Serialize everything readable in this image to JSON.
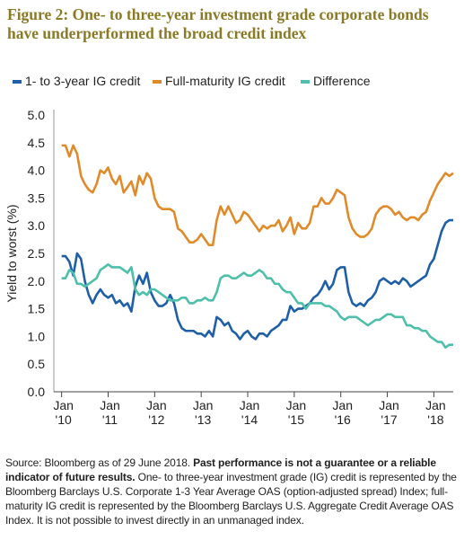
{
  "chart_data": {
    "type": "line",
    "title": "Figure 2: One- to three-year investment grade corporate bonds have underperformed the broad credit index",
    "y_label": "Yield to worst (%)",
    "legend": "top",
    "grid": false,
    "xlim": [
      "2009-11",
      "2018-06"
    ],
    "xticks": [
      {
        "value": "2010-01",
        "label": "Jan '10"
      },
      {
        "value": "2011-01",
        "label": "Jan '11"
      },
      {
        "value": "2012-01",
        "label": "Jan '12"
      },
      {
        "value": "2013-01",
        "label": "Jan '13"
      },
      {
        "value": "2014-01",
        "label": "Jan '14"
      },
      {
        "value": "2015-01",
        "label": "Jan '15"
      },
      {
        "value": "2016-01",
        "label": "Jan '16"
      },
      {
        "value": "2017-01",
        "label": "Jan '17"
      },
      {
        "value": "2018-01",
        "label": "Jan '18"
      }
    ],
    "ylim": [
      0,
      5
    ],
    "yticks": [
      {
        "value": 0,
        "label": "0.0"
      },
      {
        "value": 0.5,
        "label": "0.5"
      },
      {
        "value": 1,
        "label": "1.0"
      },
      {
        "value": 1.5,
        "label": "1.5"
      },
      {
        "value": 2,
        "label": "2.0"
      },
      {
        "value": 2.5,
        "label": "2.5"
      },
      {
        "value": 3,
        "label": "3.0"
      },
      {
        "value": 3.5,
        "label": "3.5"
      },
      {
        "value": 4,
        "label": "4.0"
      },
      {
        "value": 4.5,
        "label": "4.5"
      },
      {
        "value": 5,
        "label": "5.0"
      }
    ],
    "x": [
      "2010-01",
      "2010-02",
      "2010-03",
      "2010-04",
      "2010-05",
      "2010-06",
      "2010-07",
      "2010-08",
      "2010-09",
      "2010-10",
      "2010-11",
      "2010-12",
      "2011-01",
      "2011-02",
      "2011-03",
      "2011-04",
      "2011-05",
      "2011-06",
      "2011-07",
      "2011-08",
      "2011-09",
      "2011-10",
      "2011-11",
      "2011-12",
      "2012-01",
      "2012-02",
      "2012-03",
      "2012-04",
      "2012-05",
      "2012-06",
      "2012-07",
      "2012-08",
      "2012-09",
      "2012-10",
      "2012-11",
      "2012-12",
      "2013-01",
      "2013-02",
      "2013-03",
      "2013-04",
      "2013-05",
      "2013-06",
      "2013-07",
      "2013-08",
      "2013-09",
      "2013-10",
      "2013-11",
      "2013-12",
      "2014-01",
      "2014-02",
      "2014-03",
      "2014-04",
      "2014-05",
      "2014-06",
      "2014-07",
      "2014-08",
      "2014-09",
      "2014-10",
      "2014-11",
      "2014-12",
      "2015-01",
      "2015-02",
      "2015-03",
      "2015-04",
      "2015-05",
      "2015-06",
      "2015-07",
      "2015-08",
      "2015-09",
      "2015-10",
      "2015-11",
      "2015-12",
      "2016-01",
      "2016-02",
      "2016-03",
      "2016-04",
      "2016-05",
      "2016-06",
      "2016-07",
      "2016-08",
      "2016-09",
      "2016-10",
      "2016-11",
      "2016-12",
      "2017-01",
      "2017-02",
      "2017-03",
      "2017-04",
      "2017-05",
      "2017-06",
      "2017-07",
      "2017-08",
      "2017-09",
      "2017-10",
      "2017-11",
      "2017-12",
      "2018-01",
      "2018-02",
      "2018-03",
      "2018-04",
      "2018-05",
      "2018-06"
    ],
    "series": [
      {
        "name": "1- to 3-year IG credit",
        "color": "#1f5fa8",
        "values": [
          2.45,
          2.45,
          2.35,
          2.1,
          2.5,
          2.4,
          2.0,
          1.75,
          1.6,
          1.75,
          1.85,
          1.75,
          1.7,
          1.75,
          1.6,
          1.65,
          1.55,
          1.6,
          1.45,
          1.9,
          2.1,
          1.95,
          2.15,
          1.8,
          1.65,
          1.55,
          1.55,
          1.6,
          1.75,
          1.6,
          1.3,
          1.15,
          1.1,
          1.1,
          1.1,
          1.05,
          1.05,
          1.0,
          1.1,
          1.0,
          1.35,
          1.3,
          1.2,
          1.25,
          1.1,
          1.05,
          0.95,
          1.05,
          1.1,
          1.0,
          0.95,
          1.05,
          1.05,
          1.0,
          1.1,
          1.15,
          1.2,
          1.3,
          1.3,
          1.55,
          1.45,
          1.5,
          1.5,
          1.55,
          1.6,
          1.7,
          1.75,
          1.85,
          2.0,
          1.85,
          1.95,
          2.2,
          2.25,
          2.25,
          1.8,
          1.6,
          1.55,
          1.6,
          1.55,
          1.65,
          1.7,
          1.8,
          2.0,
          2.05,
          2.0,
          1.95,
          2.0,
          1.95,
          2.05,
          2.0,
          1.9,
          1.95,
          2.0,
          2.05,
          2.1,
          2.3,
          2.4,
          2.65,
          2.9,
          3.05,
          3.1,
          3.1
        ]
      },
      {
        "name": "Full-maturity IG credit",
        "color": "#e08a2a",
        "values": [
          4.45,
          4.45,
          4.25,
          4.45,
          4.3,
          3.9,
          3.75,
          3.65,
          3.6,
          3.75,
          4.0,
          3.95,
          4.05,
          3.85,
          3.75,
          3.9,
          3.6,
          3.7,
          3.8,
          3.55,
          3.9,
          3.75,
          3.95,
          3.85,
          3.5,
          3.35,
          3.3,
          3.3,
          3.3,
          3.25,
          2.95,
          2.9,
          2.8,
          2.7,
          2.7,
          2.75,
          2.85,
          2.75,
          2.65,
          2.65,
          3.1,
          3.35,
          3.2,
          3.35,
          3.2,
          3.05,
          3.1,
          3.25,
          3.2,
          3.1,
          3.0,
          2.9,
          3.0,
          2.95,
          3.0,
          3.0,
          3.1,
          2.9,
          3.0,
          3.15,
          2.85,
          3.05,
          2.95,
          2.95,
          3.05,
          3.35,
          3.35,
          3.5,
          3.4,
          3.4,
          3.5,
          3.65,
          3.6,
          3.55,
          3.15,
          2.95,
          2.85,
          2.8,
          2.8,
          2.85,
          2.95,
          3.2,
          3.3,
          3.35,
          3.35,
          3.3,
          3.2,
          3.25,
          3.15,
          3.1,
          3.15,
          3.15,
          3.1,
          3.2,
          3.25,
          3.45,
          3.6,
          3.75,
          3.85,
          3.95,
          3.9,
          3.95
        ]
      },
      {
        "name": "Difference",
        "color": "#4dbfaa",
        "values": [
          2.05,
          2.05,
          2.2,
          2.15,
          1.95,
          1.95,
          1.9,
          1.95,
          2.0,
          2.05,
          2.2,
          2.25,
          2.3,
          2.25,
          2.25,
          2.25,
          2.2,
          2.15,
          2.25,
          1.85,
          1.75,
          1.8,
          1.75,
          1.85,
          1.85,
          1.8,
          1.75,
          1.7,
          1.65,
          1.65,
          1.65,
          1.7,
          1.7,
          1.6,
          1.6,
          1.65,
          1.65,
          1.7,
          1.65,
          1.65,
          1.8,
          2.05,
          2.1,
          2.1,
          2.05,
          2.05,
          2.1,
          2.15,
          2.1,
          2.1,
          2.15,
          2.2,
          2.15,
          2.05,
          2.05,
          1.95,
          1.95,
          1.85,
          1.8,
          1.8,
          1.7,
          1.6,
          1.6,
          1.5,
          1.6,
          1.6,
          1.6,
          1.6,
          1.55,
          1.55,
          1.5,
          1.45,
          1.35,
          1.3,
          1.35,
          1.35,
          1.35,
          1.3,
          1.25,
          1.2,
          1.25,
          1.3,
          1.3,
          1.35,
          1.4,
          1.4,
          1.35,
          1.35,
          1.35,
          1.2,
          1.2,
          1.15,
          1.15,
          1.1,
          1.1,
          1.0,
          0.95,
          0.9,
          0.9,
          0.8,
          0.85,
          0.85
        ]
      }
    ],
    "footnote": {
      "source": "Source: Bloomberg as of 29 June 2018. ",
      "bold": "Past performance is not a guarantee or a reliable indicator of future results.",
      "text": " One- to three-year investment grade (IG) credit is represented by the Bloomberg Barclays U.S. Corporate 1-3 Year Average OAS (option-adjusted spread) Index; full-maturity IG credit is represented by the Bloomberg Barclays U.S. Aggregate Credit Average OAS Index.  It is not possible to invest directly in an unmanaged index."
    }
  }
}
